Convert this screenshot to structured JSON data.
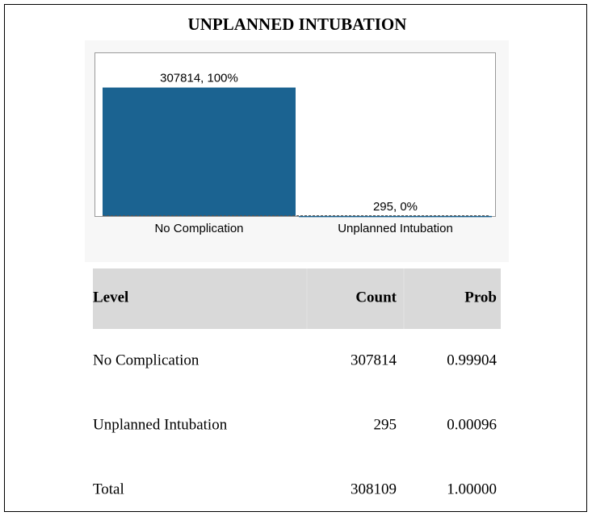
{
  "chart_data": {
    "type": "bar",
    "title": "UNPLANNED INTUBATION",
    "categories": [
      "No Complication",
      "Unplanned Intubation"
    ],
    "values": [
      307814,
      295
    ],
    "value_labels": [
      "307814, 100%",
      "295, 0%"
    ],
    "color": "#1b6391",
    "ylim": [
      0,
      390000
    ]
  },
  "table": {
    "header": [
      "Level",
      "Count",
      "Prob"
    ],
    "rows": [
      [
        "No Complication",
        "307814",
        "0.99904"
      ],
      [
        "Unplanned Intubation",
        "295",
        "0.00096"
      ],
      [
        "Total",
        "308109",
        "1.00000"
      ]
    ]
  }
}
